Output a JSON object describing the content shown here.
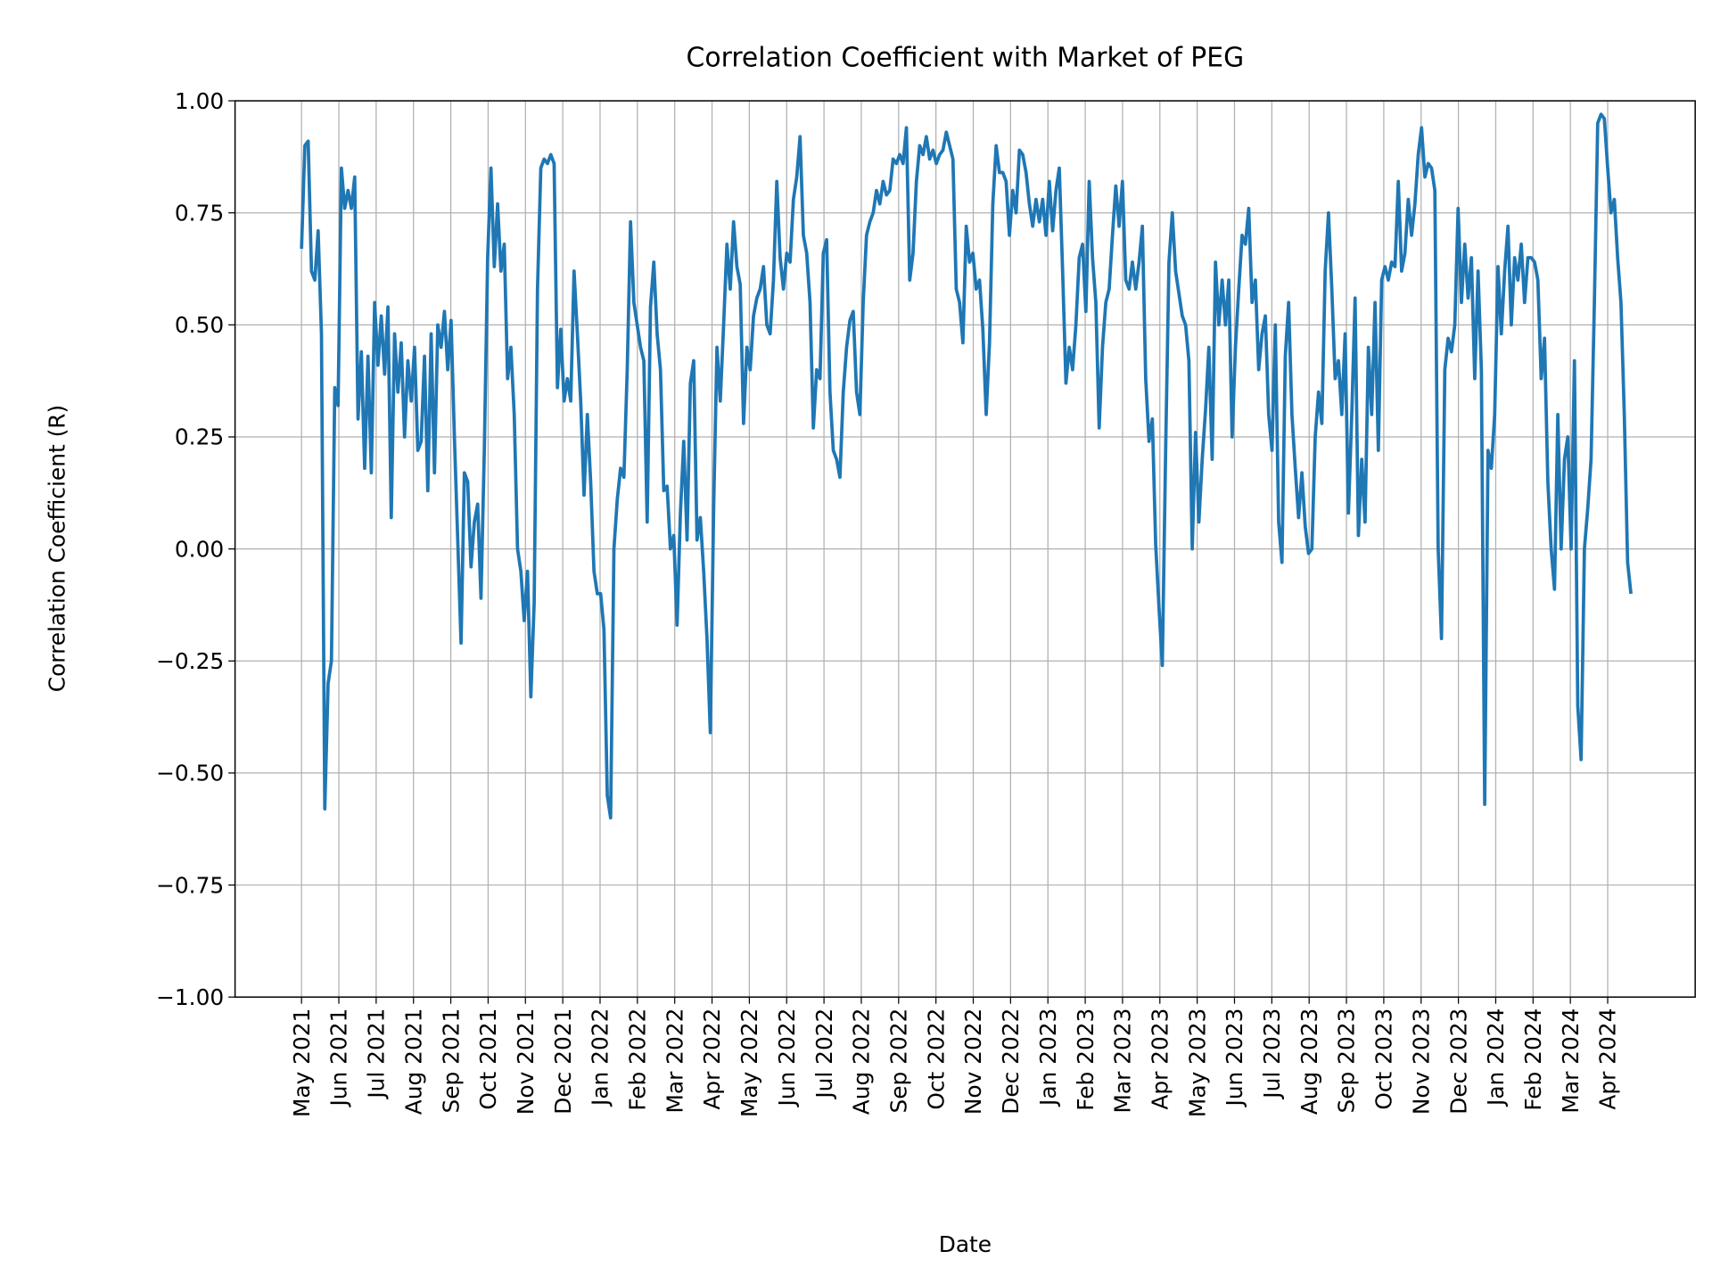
{
  "chart_data": {
    "type": "line",
    "title": "Correlation Coefficient with Market of PEG",
    "xlabel": "Date",
    "ylabel": "Correlation Coefficient (R)",
    "ylim": [
      -1,
      1
    ],
    "yticks": [
      {
        "value": -1,
        "label": "−1.00"
      },
      {
        "value": -0.75,
        "label": "−0.75"
      },
      {
        "value": -0.5,
        "label": "−0.50"
      },
      {
        "value": -0.25,
        "label": "−0.25"
      },
      {
        "value": 0,
        "label": "0.00"
      },
      {
        "value": 0.25,
        "label": "0.25"
      },
      {
        "value": 0.5,
        "label": "0.50"
      },
      {
        "value": 0.75,
        "label": "0.75"
      },
      {
        "value": 1,
        "label": "1.00"
      }
    ],
    "xticks": [
      "May 2021",
      "Jun 2021",
      "Jul 2021",
      "Aug 2021",
      "Sep 2021",
      "Oct 2021",
      "Nov 2021",
      "Dec 2021",
      "Jan 2022",
      "Feb 2022",
      "Mar 2022",
      "Apr 2022",
      "May 2022",
      "Jun 2022",
      "Jul 2022",
      "Aug 2022",
      "Sep 2022",
      "Oct 2022",
      "Nov 2022",
      "Dec 2022",
      "Jan 2023",
      "Feb 2023",
      "Mar 2023",
      "Apr 2023",
      "May 2023",
      "Jun 2023",
      "Jul 2023",
      "Aug 2023",
      "Sep 2023",
      "Oct 2023",
      "Nov 2023",
      "Dec 2023",
      "Jan 2024",
      "Feb 2024",
      "Mar 2024",
      "Apr 2024"
    ],
    "grid": true,
    "series": [
      {
        "color": "#1f77b4",
        "values": [
          0.67,
          0.9,
          0.91,
          0.62,
          0.6,
          0.71,
          0.48,
          -0.58,
          -0.3,
          -0.25,
          0.36,
          0.32,
          0.85,
          0.76,
          0.8,
          0.76,
          0.83,
          0.29,
          0.44,
          0.18,
          0.43,
          0.17,
          0.55,
          0.41,
          0.52,
          0.39,
          0.54,
          0.07,
          0.48,
          0.35,
          0.46,
          0.25,
          0.42,
          0.33,
          0.45,
          0.22,
          0.24,
          0.43,
          0.13,
          0.48,
          0.17,
          0.5,
          0.45,
          0.53,
          0.4,
          0.51,
          0.25,
          0.02,
          -0.21,
          0.17,
          0.15,
          -0.04,
          0.06,
          0.1,
          -0.11,
          0.22,
          0.65,
          0.85,
          0.63,
          0.77,
          0.62,
          0.68,
          0.38,
          0.45,
          0.3,
          0.0,
          -0.05,
          -0.16,
          -0.05,
          -0.33,
          -0.12,
          0.58,
          0.85,
          0.87,
          0.86,
          0.88,
          0.86,
          0.36,
          0.49,
          0.33,
          0.38,
          0.33,
          0.62,
          0.48,
          0.33,
          0.12,
          0.3,
          0.15,
          -0.05,
          -0.1,
          -0.1,
          -0.18,
          -0.55,
          -0.6,
          0.0,
          0.11,
          0.18,
          0.16,
          0.4,
          0.73,
          0.55,
          0.5,
          0.45,
          0.42,
          0.06,
          0.54,
          0.64,
          0.48,
          0.4,
          0.13,
          0.14,
          0.0,
          0.03,
          -0.17,
          0.08,
          0.24,
          0.02,
          0.37,
          0.42,
          0.02,
          0.07,
          -0.05,
          -0.2,
          -0.41,
          0.09,
          0.45,
          0.33,
          0.5,
          0.68,
          0.58,
          0.73,
          0.63,
          0.59,
          0.28,
          0.45,
          0.4,
          0.52,
          0.56,
          0.58,
          0.63,
          0.5,
          0.48,
          0.6,
          0.82,
          0.65,
          0.58,
          0.66,
          0.64,
          0.78,
          0.83,
          0.92,
          0.7,
          0.66,
          0.55,
          0.27,
          0.4,
          0.38,
          0.66,
          0.69,
          0.35,
          0.22,
          0.2,
          0.16,
          0.35,
          0.45,
          0.51,
          0.53,
          0.35,
          0.3,
          0.55,
          0.7,
          0.73,
          0.75,
          0.8,
          0.77,
          0.82,
          0.79,
          0.8,
          0.87,
          0.86,
          0.88,
          0.86,
          0.94,
          0.6,
          0.66,
          0.82,
          0.9,
          0.88,
          0.92,
          0.87,
          0.89,
          0.86,
          0.88,
          0.89,
          0.93,
          0.9,
          0.87,
          0.58,
          0.55,
          0.46,
          0.72,
          0.64,
          0.66,
          0.58,
          0.6,
          0.49,
          0.3,
          0.46,
          0.77,
          0.9,
          0.84,
          0.84,
          0.82,
          0.7,
          0.8,
          0.75,
          0.89,
          0.88,
          0.84,
          0.77,
          0.72,
          0.78,
          0.73,
          0.78,
          0.7,
          0.82,
          0.71,
          0.8,
          0.85,
          0.62,
          0.37,
          0.45,
          0.4,
          0.5,
          0.65,
          0.68,
          0.53,
          0.82,
          0.65,
          0.55,
          0.27,
          0.45,
          0.55,
          0.58,
          0.7,
          0.81,
          0.72,
          0.82,
          0.6,
          0.58,
          0.64,
          0.58,
          0.64,
          0.72,
          0.38,
          0.24,
          0.29,
          0.01,
          -0.13,
          -0.26,
          0.22,
          0.64,
          0.75,
          0.62,
          0.57,
          0.52,
          0.5,
          0.42,
          0.0,
          0.26,
          0.06,
          0.2,
          0.31,
          0.45,
          0.2,
          0.64,
          0.5,
          0.6,
          0.5,
          0.6,
          0.25,
          0.45,
          0.58,
          0.7,
          0.68,
          0.76,
          0.55,
          0.6,
          0.4,
          0.48,
          0.52,
          0.3,
          0.22,
          0.5,
          0.06,
          -0.03,
          0.43,
          0.55,
          0.3,
          0.18,
          0.07,
          0.17,
          0.05,
          -0.01,
          0.0,
          0.25,
          0.35,
          0.28,
          0.62,
          0.75,
          0.58,
          0.38,
          0.42,
          0.3,
          0.48,
          0.08,
          0.3,
          0.56,
          0.03,
          0.2,
          0.06,
          0.45,
          0.3,
          0.55,
          0.22,
          0.6,
          0.63,
          0.6,
          0.64,
          0.63,
          0.82,
          0.62,
          0.66,
          0.78,
          0.7,
          0.77,
          0.88,
          0.94,
          0.83,
          0.86,
          0.85,
          0.8,
          0.0,
          -0.2,
          0.4,
          0.47,
          0.44,
          0.5,
          0.76,
          0.55,
          0.68,
          0.56,
          0.65,
          0.38,
          0.62,
          0.4,
          -0.57,
          0.22,
          0.18,
          0.3,
          0.63,
          0.48,
          0.62,
          0.72,
          0.5,
          0.65,
          0.6,
          0.68,
          0.55,
          0.65,
          0.65,
          0.64,
          0.6,
          0.38,
          0.47,
          0.15,
          0.0,
          -0.09,
          0.3,
          0.0,
          0.2,
          0.25,
          0.0,
          0.42,
          -0.35,
          -0.47,
          0.0,
          0.09,
          0.2,
          0.55,
          0.95,
          0.97,
          0.96,
          0.85,
          0.75,
          0.78,
          0.65,
          0.55,
          0.3,
          -0.03,
          -0.1
        ]
      }
    ]
  }
}
